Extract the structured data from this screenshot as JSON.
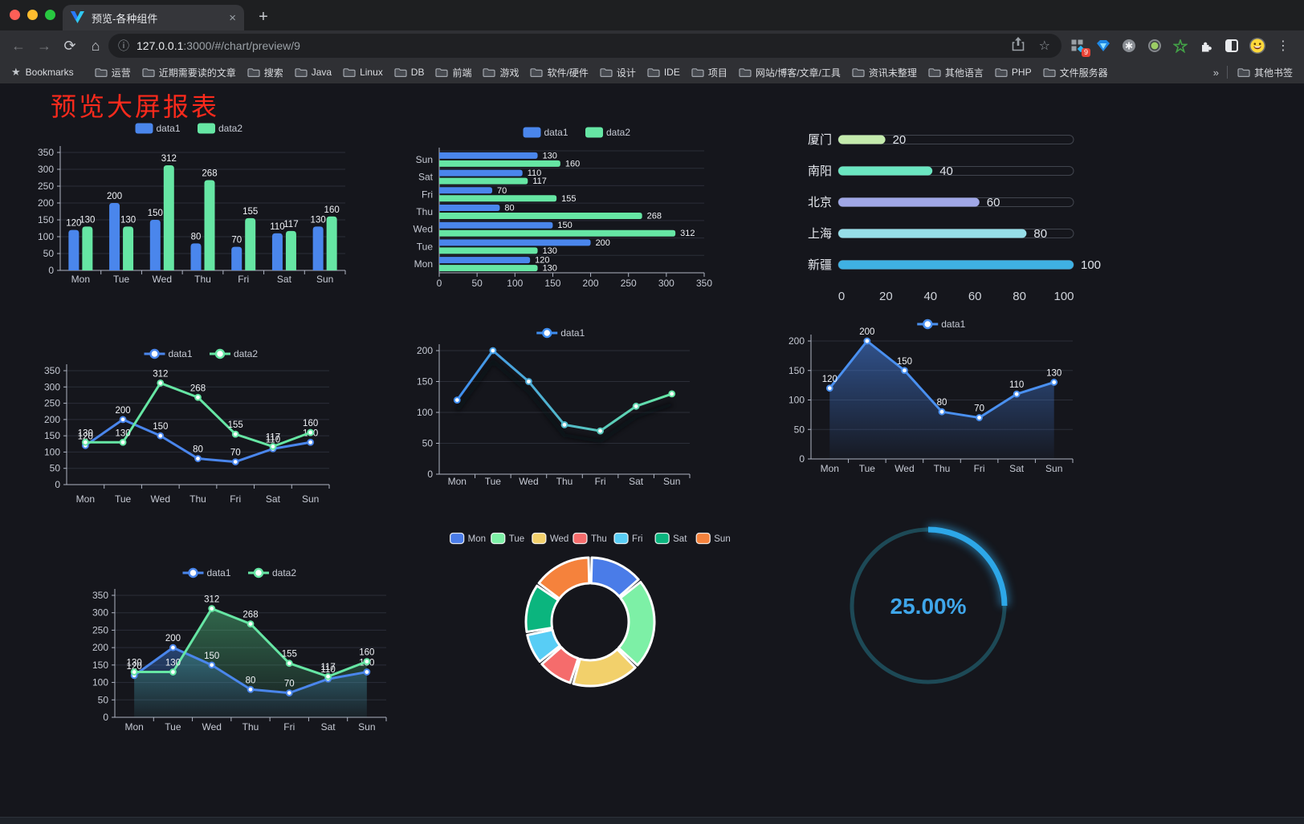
{
  "browser": {
    "tab_title": "预览-各种组件",
    "tab_close": "×",
    "new_tab": "+",
    "url_host": "127.0.0.1",
    "url_rest": ":3000/#/chart/preview/9",
    "bookmarks_label": "Bookmarks",
    "bookmarks": [
      "运营",
      "近期需要读的文章",
      "搜索",
      "Java",
      "Linux",
      "DB",
      "前端",
      "游戏",
      "软件/硬件",
      "设计",
      "IDE",
      "项目",
      "网站/博客/文章/工具",
      "资讯未整理",
      "其他语言",
      "PHP",
      "文件服务器"
    ],
    "bookmarks_overflow": "»",
    "other_bookmarks": "其他书签",
    "extension_badge": "9",
    "traffic_lights": [
      "#ff5f57",
      "#febc2e",
      "#28c840"
    ],
    "icons": {
      "back": "←",
      "forward": "→",
      "reload": "⟳",
      "home": "⌂",
      "info": "ⓘ",
      "star": "☆",
      "menu": "⋮",
      "bookmark_star": "★"
    }
  },
  "page": {
    "title": "预览大屏报表",
    "title_color": "#fb2a1c",
    "background": "#15161c"
  },
  "chart_data": [
    {
      "id": "bar-vertical",
      "type": "bar",
      "legend_position": "top",
      "grid": true,
      "categories": [
        "Mon",
        "Tue",
        "Wed",
        "Thu",
        "Fri",
        "Sat",
        "Sun"
      ],
      "series": [
        {
          "name": "data1",
          "color": "#4a86ec",
          "values": [
            120,
            200,
            150,
            80,
            70,
            110,
            130
          ]
        },
        {
          "name": "data2",
          "color": "#66e6a4",
          "values": [
            130,
            130,
            312,
            268,
            155,
            117,
            160
          ]
        }
      ],
      "ylim": [
        0,
        350
      ],
      "ystep": 50,
      "value_labels": true
    },
    {
      "id": "bar-horizontal",
      "type": "bar",
      "orientation": "horizontal",
      "legend_position": "top",
      "categories": [
        "Mon",
        "Tue",
        "Wed",
        "Thu",
        "Fri",
        "Sat",
        "Sun"
      ],
      "series": [
        {
          "name": "data1",
          "color": "#4a86ec",
          "values": [
            120,
            200,
            150,
            80,
            70,
            110,
            130
          ]
        },
        {
          "name": "data2",
          "color": "#66e6a4",
          "values": [
            130,
            130,
            312,
            268,
            155,
            117,
            160
          ]
        }
      ],
      "xlim": [
        0,
        350
      ],
      "xstep": 50,
      "value_labels": true
    },
    {
      "id": "progress-bars",
      "type": "bar",
      "subtype": "progress",
      "items": [
        {
          "label": "厦门",
          "value": 20,
          "color": "#c4ebad"
        },
        {
          "label": "南阳",
          "value": 40,
          "color": "#6be6c1"
        },
        {
          "label": "北京",
          "value": 60,
          "color": "#a0a7e6"
        },
        {
          "label": "上海",
          "value": 80,
          "color": "#96dee8"
        },
        {
          "label": "新疆",
          "value": 100,
          "color": "#3fb1e3"
        }
      ],
      "xlim": [
        0,
        100
      ],
      "xticks": [
        0,
        20,
        40,
        60,
        80,
        100
      ]
    },
    {
      "id": "line-dual",
      "type": "line",
      "legend_position": "top",
      "categories": [
        "Mon",
        "Tue",
        "Wed",
        "Thu",
        "Fri",
        "Sat",
        "Sun"
      ],
      "series": [
        {
          "name": "data1",
          "color": "#4a86ec",
          "values": [
            120,
            200,
            150,
            80,
            70,
            110,
            130
          ]
        },
        {
          "name": "data2",
          "color": "#66e6a4",
          "values": [
            130,
            130,
            312,
            268,
            155,
            117,
            160
          ]
        }
      ],
      "ylim": [
        0,
        350
      ],
      "ystep": 50,
      "value_labels": true
    },
    {
      "id": "line-gradient",
      "type": "line",
      "legend_position": "top",
      "categories": [
        "Mon",
        "Tue",
        "Wed",
        "Thu",
        "Fri",
        "Sat",
        "Sun"
      ],
      "series": [
        {
          "name": "data1",
          "gradient": [
            "#3f8ef0",
            "#66e6a4"
          ],
          "values": [
            120,
            200,
            150,
            80,
            70,
            110,
            130
          ]
        }
      ],
      "ylim": [
        0,
        200
      ],
      "ystep": 50,
      "value_labels": false
    },
    {
      "id": "area-blue",
      "type": "area",
      "legend_position": "top",
      "categories": [
        "Mon",
        "Tue",
        "Wed",
        "Thu",
        "Fri",
        "Sat",
        "Sun"
      ],
      "series": [
        {
          "name": "data1",
          "color": "#4a90f0",
          "values": [
            120,
            200,
            150,
            80,
            70,
            110,
            130
          ]
        }
      ],
      "ylim": [
        0,
        200
      ],
      "ystep": 50,
      "value_labels": true
    },
    {
      "id": "area-dual",
      "type": "area",
      "legend_position": "top",
      "categories": [
        "Mon",
        "Tue",
        "Wed",
        "Thu",
        "Fri",
        "Sat",
        "Sun"
      ],
      "series": [
        {
          "name": "data1",
          "color": "#4a86ec",
          "values": [
            120,
            200,
            150,
            80,
            70,
            110,
            130
          ]
        },
        {
          "name": "data2",
          "color": "#66e6a4",
          "values": [
            130,
            130,
            312,
            268,
            155,
            117,
            160
          ]
        }
      ],
      "ylim": [
        0,
        350
      ],
      "ystep": 50,
      "value_labels": true
    },
    {
      "id": "pie-donut",
      "type": "pie",
      "legend_position": "top",
      "inner_radius_ratio": 0.6,
      "slices": [
        {
          "label": "Mon",
          "value": 120,
          "color": "#4a7ce8"
        },
        {
          "label": "Tue",
          "value": 200,
          "color": "#7df0a6"
        },
        {
          "label": "Wed",
          "value": 150,
          "color": "#f2d06b"
        },
        {
          "label": "Thu",
          "value": 80,
          "color": "#f56c6c"
        },
        {
          "label": "Fri",
          "value": 70,
          "color": "#58cdf5"
        },
        {
          "label": "Sat",
          "value": 110,
          "color": "#0bb57e"
        },
        {
          "label": "Sun",
          "value": 130,
          "color": "#f5823c"
        }
      ]
    },
    {
      "id": "gauge",
      "type": "gauge",
      "value": 25,
      "label": "25.00%",
      "color": "#2da7e8",
      "track_color": "#1d4956",
      "text_color": "#3fa6ea"
    }
  ]
}
